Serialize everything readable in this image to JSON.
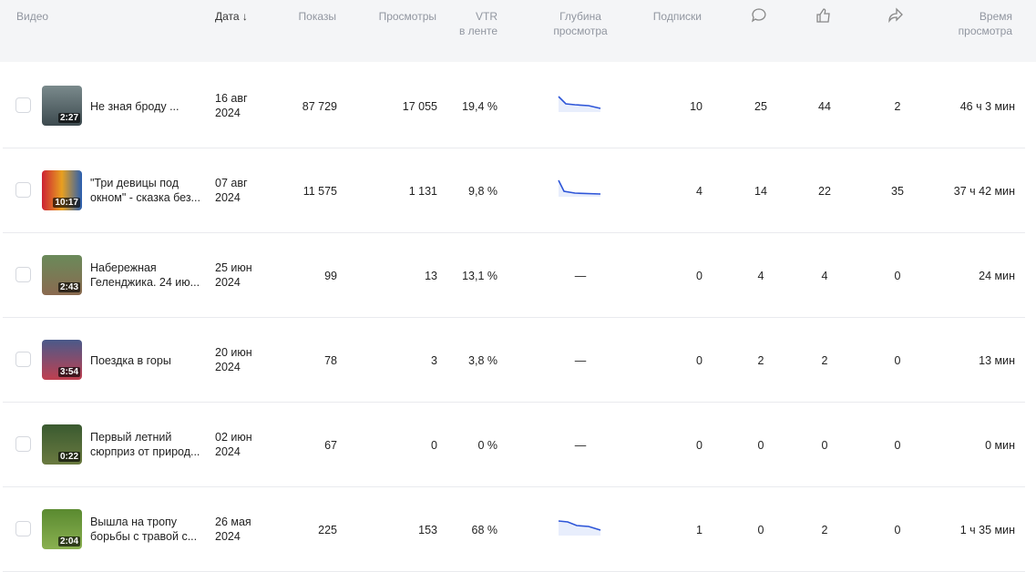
{
  "header": {
    "video": "Видео",
    "date": "Дата",
    "impressions": "Показы",
    "views": "Просмотры",
    "vtr": "VTR\nв ленте",
    "depth": "Глубина\nпросмотра",
    "subscriptions": "Подписки",
    "watch_time": "Время\nпросмотра"
  },
  "rows": [
    {
      "duration": "2:27",
      "title": "Не зная броду ...",
      "date": "16 авг\n2024",
      "impressions": "87 729",
      "views": "17 055",
      "vtr": "19,4 %",
      "subscriptions": "10",
      "comments": "25",
      "likes": "44",
      "shares": "2",
      "watch_time": "46 ч 3 мин"
    },
    {
      "duration": "10:17",
      "title": "\"Три девицы под\nокном\" - сказка без...",
      "date": "07 авг\n2024",
      "impressions": "11 575",
      "views": "1 131",
      "vtr": "9,8 %",
      "subscriptions": "4",
      "comments": "14",
      "likes": "22",
      "shares": "35",
      "watch_time": "37 ч 42 мин"
    },
    {
      "duration": "2:43",
      "title": "Набережная\nГеленджика. 24 ию...",
      "date": "25 июн\n2024",
      "impressions": "99",
      "views": "13",
      "vtr": "13,1 %",
      "depth": "—",
      "subscriptions": "0",
      "comments": "4",
      "likes": "4",
      "shares": "0",
      "watch_time": "24 мин"
    },
    {
      "duration": "3:54",
      "title": "Поездка в горы",
      "date": "20 июн\n2024",
      "impressions": "78",
      "views": "3",
      "vtr": "3,8 %",
      "depth": "—",
      "subscriptions": "0",
      "comments": "2",
      "likes": "2",
      "shares": "0",
      "watch_time": "13 мин"
    },
    {
      "duration": "0:22",
      "title": "Первый летний\nсюрприз от природ...",
      "date": "02 июн\n2024",
      "impressions": "67",
      "views": "0",
      "vtr": "0 %",
      "depth": "—",
      "subscriptions": "0",
      "comments": "0",
      "likes": "0",
      "shares": "0",
      "watch_time": "0 мин"
    },
    {
      "duration": "2:04",
      "title": "Вышла на тропу\nборьбы с травой с...",
      "date": "26 мая\n2024",
      "impressions": "225",
      "views": "153",
      "vtr": "68 %",
      "subscriptions": "1",
      "comments": "0",
      "likes": "2",
      "shares": "0",
      "watch_time": "1 ч 35 мин"
    }
  ]
}
